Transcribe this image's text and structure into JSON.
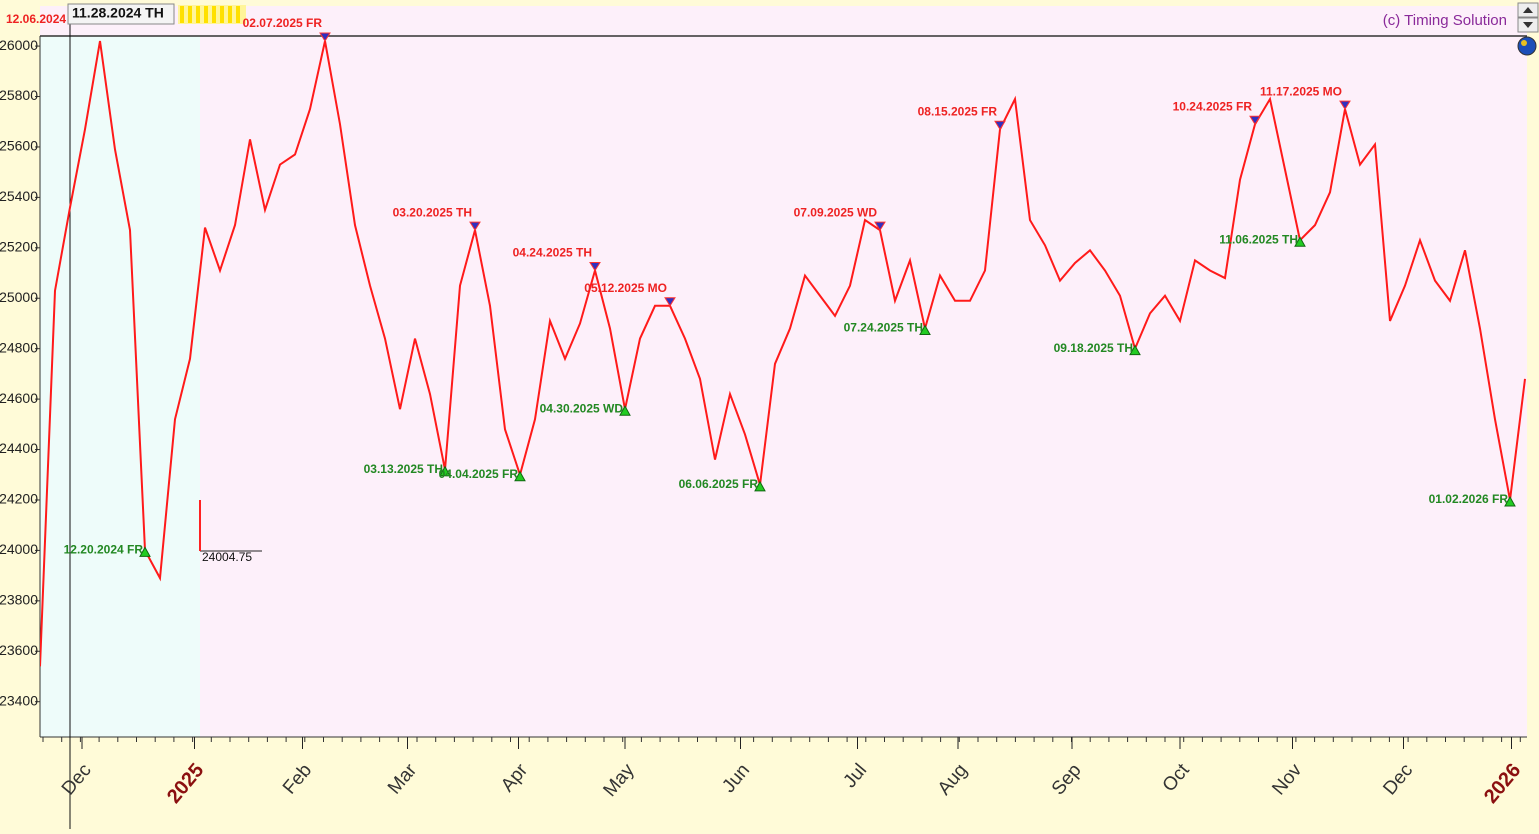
{
  "chart_data": {
    "type": "line",
    "cursor_date": "11.28.2024 TH",
    "corner_date": "12.06.2024",
    "credit": "(c) Timing Solution",
    "last_price": 24004.75,
    "xlim": [
      0,
      99
    ],
    "ylim": [
      23260,
      26040
    ],
    "yticks": [
      23400,
      23600,
      23800,
      24000,
      24200,
      24400,
      24600,
      24800,
      25000,
      25200,
      25400,
      25600,
      25800,
      26000
    ],
    "xticks": [
      {
        "value": 2.8,
        "label": "Dec"
      },
      {
        "value": 10.3,
        "label": "2025"
      },
      {
        "value": 17.5,
        "label": "Feb"
      },
      {
        "value": 24.5,
        "label": "Mar"
      },
      {
        "value": 31.9,
        "label": "Apr"
      },
      {
        "value": 39,
        "label": "May"
      },
      {
        "value": 46.7,
        "label": "Jun"
      },
      {
        "value": 54.5,
        "label": "Jul"
      },
      {
        "value": 61.2,
        "label": "Aug"
      },
      {
        "value": 68.8,
        "label": "Sep"
      },
      {
        "value": 76,
        "label": "Oct"
      },
      {
        "value": 83.5,
        "label": "Nov"
      },
      {
        "value": 90.9,
        "label": "Dec"
      },
      {
        "value": 98.1,
        "label": "2026"
      }
    ],
    "series": [
      {
        "color": "#ff1a1a",
        "values": [
          23540,
          25030,
          25360,
          25670,
          26020,
          25590,
          25270,
          24000,
          23890,
          24520,
          24760,
          25280,
          25110,
          25290,
          25630,
          25350,
          25530,
          25570,
          25750,
          26020,
          25690,
          25290,
          25050,
          24840,
          24560,
          24840,
          24620,
          24320,
          25050,
          25270,
          24970,
          24480,
          24300,
          24520,
          24910,
          24760,
          24900,
          25110,
          24880,
          24560,
          24840,
          24970,
          24970,
          24840,
          24680,
          24360,
          24620,
          24460,
          24260,
          24740,
          24880,
          25090,
          25010,
          24930,
          25050,
          25310,
          25270,
          24990,
          25150,
          24880,
          25090,
          24990,
          24990,
          25110,
          25670,
          25790,
          25310,
          25210,
          25070,
          25140,
          25190,
          25110,
          25010,
          24800,
          24940,
          25010,
          24910,
          25150,
          25110,
          25080,
          25470,
          25690,
          25790,
          25510,
          25230,
          25290,
          25420,
          25750,
          25530,
          25610,
          24910,
          25050,
          25230,
          25070,
          24990,
          25190,
          24880,
          24520,
          24200,
          24680
        ]
      }
    ],
    "tops": [
      {
        "text": "02.07.2025 FR",
        "x": 19
      },
      {
        "text": "03.20.2025 TH",
        "x": 29
      },
      {
        "text": "04.24.2025 TH",
        "x": 37
      },
      {
        "text": "05.12.2025 MO",
        "x": 42
      },
      {
        "text": "07.09.2025 WD",
        "x": 56
      },
      {
        "text": "08.15.2025 FR",
        "x": 64
      },
      {
        "text": "10.24.2025 FR",
        "x": 81
      },
      {
        "text": "11.17.2025 MO",
        "x": 87
      }
    ],
    "bottoms": [
      {
        "text": "12.20.2024 FR",
        "x": 7
      },
      {
        "text": "03.13.2025 TH",
        "x": 27
      },
      {
        "text": "04.04.2025 FR",
        "x": 32
      },
      {
        "text": "04.30.2025 WD",
        "x": 39
      },
      {
        "text": "06.06.2025 FR",
        "x": 48
      },
      {
        "text": "07.24.2025 TH",
        "x": 59
      },
      {
        "text": "09.18.2025 TH",
        "x": 73
      },
      {
        "text": "11.06.2025 TH",
        "x": 84
      },
      {
        "text": "01.02.2026 FR",
        "x": 98
      }
    ]
  }
}
